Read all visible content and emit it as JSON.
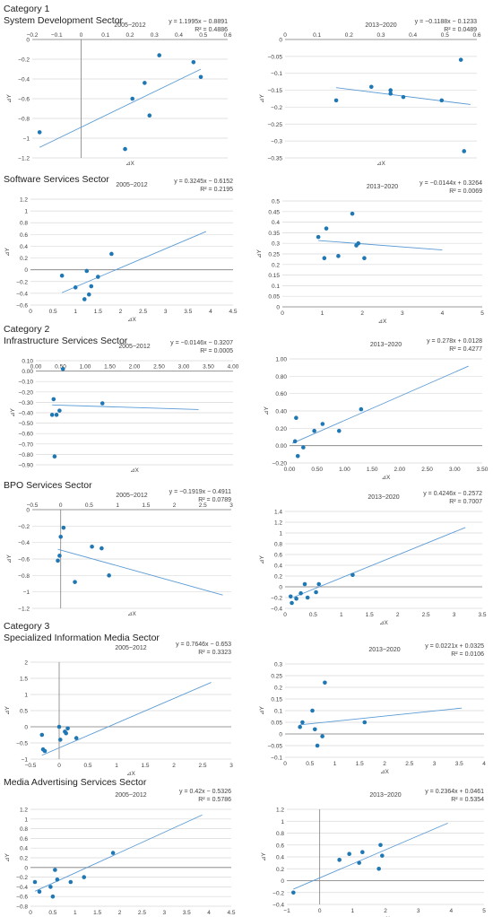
{
  "sections": [
    {
      "category": "Category 1",
      "sector": "System Development Sector"
    },
    {
      "category": "",
      "sector": "Software Services Sector"
    },
    {
      "category": "Category 2",
      "sector": "Infrastructure Services Sector"
    },
    {
      "category": "",
      "sector": "BPO Services Sector"
    },
    {
      "category": "Category 3",
      "sector": "Specialized Information Media Sector"
    },
    {
      "category": "",
      "sector": "Media Advertising Services Sector"
    }
  ],
  "chart_data": [
    {
      "type": "scatter",
      "title": "2005~2012",
      "equation": "y = 1.1995x − 0.8891",
      "r2": "R² = 0.4886",
      "xlabel": "⊿X",
      "ylabel": "⊿Y",
      "xlim": [
        -0.2,
        0.6
      ],
      "ylim": [
        -1.2,
        0
      ],
      "xticks": [
        -0.2,
        -0.1,
        0,
        0.1,
        0.2,
        0.3,
        0.4,
        0.5,
        0.6
      ],
      "yticks": [
        0,
        -0.2,
        -0.4,
        -0.6,
        -0.8,
        -1,
        -1.2
      ],
      "xtick_labels": [
        "−0.2",
        "−0.1",
        "0",
        "0.1",
        "0.2",
        "0.3",
        "0.4",
        "0.5",
        "0.6"
      ],
      "ytick_labels": [
        "0",
        "−0.2",
        "−0.4",
        "−0.6",
        "−0.8",
        "−1",
        "−1.2"
      ],
      "x": [
        -0.17,
        0.18,
        0.21,
        0.26,
        0.28,
        0.32,
        0.46,
        0.49
      ],
      "y": [
        -0.94,
        -1.11,
        -0.6,
        -0.44,
        -0.77,
        -0.16,
        -0.23,
        -0.38
      ],
      "trend": {
        "slope": 1.1995,
        "intercept": -0.8891,
        "x": [
          -0.17,
          0.49
        ]
      }
    },
    {
      "type": "scatter",
      "title": "2013~2020",
      "equation": "y = −0.1188x − 0.1233",
      "r2": "R² = 0.0489",
      "xlabel": "⊿X",
      "ylabel": "⊿Y",
      "xlim": [
        0,
        0.6
      ],
      "ylim": [
        -0.35,
        0
      ],
      "xticks": [
        0,
        0.1,
        0.2,
        0.3,
        0.4,
        0.5,
        0.6
      ],
      "yticks": [
        0,
        -0.05,
        -0.1,
        -0.15,
        -0.2,
        -0.25,
        -0.3,
        -0.35
      ],
      "xtick_labels": [
        "0",
        "0.1",
        "0.2",
        "0.3",
        "0.4",
        "0.5",
        "0.6"
      ],
      "ytick_labels": [
        "0",
        "−0.05",
        "−0.1",
        "−0.15",
        "−0.2",
        "−0.25",
        "−0.3",
        "−0.35"
      ],
      "x": [
        0.16,
        0.27,
        0.33,
        0.33,
        0.37,
        0.49,
        0.55,
        0.56
      ],
      "y": [
        -0.18,
        -0.14,
        -0.15,
        -0.16,
        -0.17,
        -0.18,
        -0.06,
        -0.33
      ],
      "trend": {
        "slope": -0.1188,
        "intercept": -0.1233,
        "x": [
          0.16,
          0.58
        ]
      }
    },
    {
      "type": "scatter",
      "title": "2005~2012",
      "equation": "y = 0.3245x − 0.6152",
      "r2": "R² = 0.2195",
      "xlabel": "⊿X",
      "ylabel": "⊿Y",
      "xlim": [
        0,
        4.5
      ],
      "ylim": [
        -0.6,
        1.2
      ],
      "xticks": [
        0,
        0.5,
        1,
        1.5,
        2,
        2.5,
        3,
        3.5,
        4,
        4.5
      ],
      "yticks": [
        1.2,
        1,
        0.8,
        0.6,
        0.4,
        0.2,
        0,
        -0.2,
        -0.4,
        -0.6
      ],
      "xtick_labels": [
        "0",
        "0.5",
        "1",
        "1.5",
        "2",
        "2.5",
        "3",
        "3.5",
        "4",
        "4.5"
      ],
      "ytick_labels": [
        "1.2",
        "1",
        "0.8",
        "0.6",
        "0.4",
        "0.2",
        "0",
        "−0.2",
        "−0.4",
        "−0.6"
      ],
      "x": [
        0.7,
        1.0,
        1.2,
        1.25,
        1.3,
        1.35,
        1.5,
        1.8
      ],
      "y": [
        -0.1,
        -0.3,
        -0.5,
        -0.02,
        -0.42,
        -0.28,
        -0.12,
        0.27
      ],
      "trend": {
        "slope": 0.3245,
        "intercept": -0.6152,
        "x": [
          0.7,
          3.9
        ]
      }
    },
    {
      "type": "scatter",
      "title": "2013~2020",
      "equation": "y = −0.0144x + 0.3264",
      "r2": "R² = 0.0069",
      "xlabel": "⊿X",
      "ylabel": "⊿Y",
      "xlim": [
        0,
        5
      ],
      "ylim": [
        0,
        0.5
      ],
      "xticks": [
        0,
        1,
        2,
        3,
        4,
        5
      ],
      "yticks": [
        0.5,
        0.45,
        0.4,
        0.35,
        0.3,
        0.25,
        0.2,
        0.15,
        0.1,
        0.05,
        0
      ],
      "xtick_labels": [
        "0",
        "1",
        "2",
        "3",
        "4",
        "5"
      ],
      "ytick_labels": [
        "0.5",
        "0.45",
        "0.4",
        "0.35",
        "0.3",
        "0.25",
        "0.2",
        "0.15",
        "0.1",
        "0.05",
        "0"
      ],
      "x": [
        0.9,
        1.05,
        1.1,
        1.4,
        1.75,
        1.85,
        1.9,
        2.05
      ],
      "y": [
        0.33,
        0.23,
        0.37,
        0.24,
        0.44,
        0.29,
        0.3,
        0.23
      ],
      "trend": {
        "slope": -0.0144,
        "intercept": 0.3264,
        "x": [
          0.9,
          4.0
        ]
      }
    },
    {
      "type": "scatter",
      "title": "2005~2012",
      "equation": "y = −0.0146x − 0.3207",
      "r2": "R² = 0.0005",
      "xlabel": "⊿X",
      "ylabel": "⊿Y",
      "xlim": [
        0,
        4
      ],
      "ylim": [
        -0.9,
        0.1
      ],
      "xticks": [
        0,
        0.5,
        1,
        1.5,
        2,
        2.5,
        3,
        3.5,
        4
      ],
      "yticks": [
        0.1,
        0,
        -0.1,
        -0.2,
        -0.3,
        -0.4,
        -0.5,
        -0.6,
        -0.7,
        -0.8,
        -0.9
      ],
      "xtick_labels": [
        "0.00",
        "0.50",
        "1.00",
        "1.50",
        "2.00",
        "2.50",
        "3.00",
        "3.50",
        "4.00"
      ],
      "ytick_labels": [
        "0.10",
        "0.00",
        "−0.10",
        "−0.20",
        "−0.30",
        "−0.40",
        "−0.50",
        "−0.60",
        "−0.70",
        "−0.80",
        "−0.90"
      ],
      "x": [
        0.33,
        0.36,
        0.38,
        0.42,
        0.48,
        0.55,
        1.35
      ],
      "y": [
        -0.42,
        -0.27,
        -0.82,
        -0.42,
        -0.38,
        0.02,
        -0.31
      ],
      "trend": {
        "slope": -0.0146,
        "intercept": -0.3207,
        "x": [
          0.33,
          3.3
        ]
      }
    },
    {
      "type": "scatter",
      "title": "2013~2020",
      "equation": "y = 0.278x + 0.0128",
      "r2": "R² = 0.4277",
      "xlabel": "⊿X",
      "ylabel": "⊿Y",
      "xlim": [
        0,
        3.5
      ],
      "ylim": [
        -0.2,
        1.0
      ],
      "xticks": [
        0,
        0.5,
        1,
        1.5,
        2,
        2.5,
        3,
        3.5
      ],
      "yticks": [
        1.0,
        0.8,
        0.6,
        0.4,
        0.2,
        0,
        -0.2
      ],
      "xtick_labels": [
        "0.00",
        "0.50",
        "1.00",
        "1.50",
        "2.00",
        "2.50",
        "3.00",
        "3.50"
      ],
      "ytick_labels": [
        "1.00",
        "0.80",
        "0.60",
        "0.40",
        "0.20",
        "0.00",
        "−0.20"
      ],
      "x": [
        0.1,
        0.12,
        0.15,
        0.25,
        0.45,
        0.6,
        0.9,
        1.3
      ],
      "y": [
        0.05,
        0.32,
        -0.12,
        -0.02,
        0.17,
        0.25,
        0.17,
        0.42
      ],
      "trend": {
        "slope": 0.278,
        "intercept": 0.0128,
        "x": [
          0.05,
          3.25
        ]
      }
    },
    {
      "type": "scatter",
      "title": "2005~2012",
      "equation": "y = −0.1919x − 0.4911",
      "r2": "R² = 0.0789",
      "xlabel": "⊿X",
      "ylabel": "⊿Y",
      "xlim": [
        -0.5,
        3
      ],
      "ylim": [
        -1.2,
        0
      ],
      "xticks": [
        -0.5,
        0,
        0.5,
        1,
        1.5,
        2,
        2.5,
        3
      ],
      "yticks": [
        0,
        -0.2,
        -0.4,
        -0.6,
        -0.8,
        -1,
        -1.2
      ],
      "xtick_labels": [
        "−0.5",
        "0",
        "0.5",
        "1",
        "1.5",
        "2",
        "2.5",
        "3"
      ],
      "ytick_labels": [
        "0",
        "−0.2",
        "−0.4",
        "−0.6",
        "−0.8",
        "−1",
        "−1.2"
      ],
      "x": [
        -0.05,
        -0.02,
        0.0,
        0.05,
        0.25,
        0.55,
        0.72,
        0.85
      ],
      "y": [
        -0.62,
        -0.56,
        -0.33,
        -0.22,
        -0.88,
        -0.45,
        -0.47,
        -0.8
      ],
      "trend": {
        "slope": -0.1919,
        "intercept": -0.4911,
        "x": [
          -0.05,
          2.85
        ]
      }
    },
    {
      "type": "scatter",
      "title": "2013~2020",
      "equation": "y = 0.4246x − 0.2572",
      "r2": "R² = 0.7007",
      "xlabel": "⊿X",
      "ylabel": "⊿Y",
      "xlim": [
        0,
        3.5
      ],
      "ylim": [
        -0.4,
        1.4
      ],
      "xticks": [
        0,
        0.5,
        1,
        1.5,
        2,
        2.5,
        3,
        3.5
      ],
      "yticks": [
        1.4,
        1.2,
        1,
        0.8,
        0.6,
        0.4,
        0.2,
        0,
        -0.2,
        -0.4
      ],
      "xtick_labels": [
        "0",
        "0.5",
        "1",
        "1.5",
        "2",
        "2.5",
        "3",
        "3.5"
      ],
      "ytick_labels": [
        "1.4",
        "1.2",
        "1",
        "0.8",
        "0.6",
        "0.4",
        "0.2",
        "0",
        "−0.2",
        "−0.4"
      ],
      "x": [
        0.1,
        0.12,
        0.2,
        0.28,
        0.35,
        0.4,
        0.55,
        0.6,
        1.2
      ],
      "y": [
        -0.18,
        -0.3,
        -0.22,
        -0.12,
        0.05,
        -0.2,
        -0.1,
        0.05,
        0.22
      ],
      "trend": {
        "slope": 0.4246,
        "intercept": -0.2572,
        "x": [
          0.15,
          3.2
        ]
      }
    },
    {
      "type": "scatter",
      "title": "2005~2012",
      "equation": "y = 0.7646x − 0.653",
      "r2": "R² = 0.3323",
      "xlabel": "⊿X",
      "ylabel": "⊿Y",
      "xlim": [
        -0.5,
        3
      ],
      "ylim": [
        -1,
        2
      ],
      "xticks": [
        -0.5,
        0,
        0.5,
        1,
        1.5,
        2,
        2.5,
        3
      ],
      "yticks": [
        2,
        1.5,
        1,
        0.5,
        0,
        -0.5,
        -1
      ],
      "xtick_labels": [
        "−0.5",
        "0",
        "0.5",
        "1",
        "1.5",
        "2",
        "2.5",
        "3"
      ],
      "ytick_labels": [
        "2",
        "1.5",
        "1",
        "0.5",
        "0",
        "−0.5",
        "−1"
      ],
      "x": [
        -0.3,
        -0.28,
        -0.25,
        0.0,
        0.02,
        0.1,
        0.12,
        0.15,
        0.3
      ],
      "y": [
        -0.25,
        -0.7,
        -0.75,
        0.0,
        -0.4,
        -0.15,
        -0.2,
        -0.05,
        -0.35
      ],
      "trend": {
        "slope": 0.7646,
        "intercept": -0.653,
        "x": [
          -0.3,
          2.65
        ]
      }
    },
    {
      "type": "scatter",
      "title": "2013~2020",
      "equation": "y = 0.0221x + 0.0325",
      "r2": "R² = 0.0106",
      "xlabel": "⊿X",
      "ylabel": "⊿Y",
      "xlim": [
        0,
        4
      ],
      "ylim": [
        -0.1,
        0.3
      ],
      "xticks": [
        0,
        0.5,
        1,
        1.5,
        2,
        2.5,
        3,
        3.5,
        4
      ],
      "yticks": [
        0.3,
        0.25,
        0.2,
        0.15,
        0.1,
        0.05,
        0,
        -0.05,
        -0.1
      ],
      "xtick_labels": [
        "0",
        "0.5",
        "1",
        "1.5",
        "2",
        "2.5",
        "3",
        "3.5",
        "4"
      ],
      "ytick_labels": [
        "0.3",
        "0.25",
        "0.2",
        "0.15",
        "0.1",
        "0.05",
        "0",
        "−0.05",
        "−0.1"
      ],
      "x": [
        0.3,
        0.35,
        0.55,
        0.6,
        0.65,
        0.75,
        0.8,
        1.6
      ],
      "y": [
        0.03,
        0.05,
        0.1,
        0.02,
        -0.05,
        -0.01,
        0.22,
        0.05
      ],
      "trend": {
        "slope": 0.0221,
        "intercept": 0.0325,
        "x": [
          0.3,
          3.55
        ]
      }
    },
    {
      "type": "scatter",
      "title": "2005~2012",
      "equation": "y = 0.42x − 0.5326",
      "r2": "R² = 0.5786",
      "xlabel": "⊿X",
      "ylabel": "⊿Y",
      "xlim": [
        0,
        4.5
      ],
      "ylim": [
        -0.8,
        1.2
      ],
      "xticks": [
        0,
        0.5,
        1,
        1.5,
        2,
        2.5,
        3,
        3.5,
        4,
        4.5
      ],
      "yticks": [
        1.2,
        1,
        0.8,
        0.6,
        0.4,
        0.2,
        0,
        -0.2,
        -0.4,
        -0.6,
        -0.8
      ],
      "xtick_labels": [
        "0",
        "0.5",
        "1",
        "1.5",
        "2",
        "2.5",
        "3",
        "3.5",
        "4",
        "4.5"
      ],
      "ytick_labels": [
        "1.2",
        "1",
        "0.8",
        "0.6",
        "0.4",
        "0.2",
        "0",
        "−0.2",
        "−0.4",
        "−0.6",
        "−0.8"
      ],
      "x": [
        0.1,
        0.2,
        0.45,
        0.5,
        0.55,
        0.6,
        0.9,
        1.2,
        1.85
      ],
      "y": [
        -0.3,
        -0.5,
        -0.4,
        -0.6,
        -0.05,
        -0.25,
        -0.3,
        -0.2,
        0.3
      ],
      "trend": {
        "slope": 0.42,
        "intercept": -0.5326,
        "x": [
          0.1,
          3.85
        ]
      }
    },
    {
      "type": "scatter",
      "title": "2013~2020",
      "equation": "y = 0.2364x + 0.0461",
      "r2": "R² = 0.5354",
      "xlabel": "⊿X",
      "ylabel": "⊿Y",
      "xlim": [
        -1,
        5
      ],
      "ylim": [
        -0.4,
        1.2
      ],
      "xticks": [
        -1,
        0,
        1,
        2,
        3,
        4,
        5
      ],
      "yticks": [
        1.2,
        1,
        0.8,
        0.6,
        0.4,
        0.2,
        0,
        -0.2,
        -0.4
      ],
      "xtick_labels": [
        "−1",
        "0",
        "1",
        "2",
        "3",
        "4",
        "5"
      ],
      "ytick_labels": [
        "1.2",
        "1",
        "0.8",
        "0.6",
        "0.4",
        "0.2",
        "0",
        "−0.2",
        "−0.4"
      ],
      "x": [
        -0.8,
        0.6,
        0.9,
        1.2,
        1.3,
        1.8,
        1.85,
        1.9
      ],
      "y": [
        -0.2,
        0.35,
        0.45,
        0.3,
        0.48,
        0.2,
        0.6,
        0.42
      ],
      "trend": {
        "slope": 0.2364,
        "intercept": 0.0461,
        "x": [
          -0.8,
          3.9
        ]
      }
    }
  ],
  "colors": {
    "marker": "#1f77b4",
    "trend": "#5b9bd5",
    "grid": "#d9d9d9",
    "axis": "#7f7f7f",
    "text": "#404040"
  }
}
